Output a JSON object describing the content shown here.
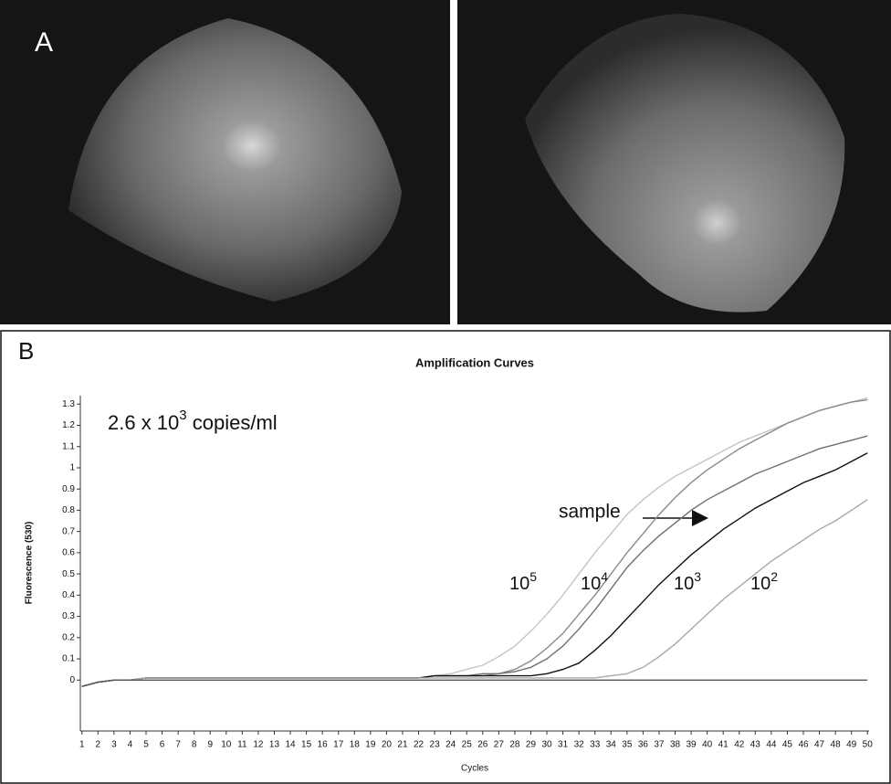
{
  "panel_a": {
    "label": "A"
  },
  "chart_data": {
    "type": "line",
    "panel_label": "B",
    "title": "Amplification Curves",
    "x_label": "Cycles",
    "y_label": "Fluorescence (530)",
    "annotation": {
      "text": "2.6 x 10",
      "sup": "3",
      "tail": " copies/ml"
    },
    "arrow_label": "sample",
    "x": [
      1,
      2,
      3,
      4,
      5,
      6,
      7,
      8,
      9,
      10,
      11,
      12,
      13,
      14,
      15,
      16,
      17,
      18,
      19,
      20,
      21,
      22,
      23,
      24,
      25,
      26,
      27,
      28,
      29,
      30,
      31,
      32,
      33,
      34,
      35,
      36,
      37,
      38,
      39,
      40,
      41,
      42,
      43,
      44,
      45,
      46,
      47,
      48,
      49,
      50
    ],
    "xlim": [
      0.9,
      50.1
    ],
    "xticks": [
      1,
      2,
      3,
      4,
      5,
      6,
      7,
      8,
      9,
      10,
      11,
      12,
      13,
      14,
      15,
      16,
      17,
      18,
      19,
      20,
      21,
      22,
      23,
      24,
      25,
      26,
      27,
      28,
      29,
      30,
      31,
      32,
      33,
      34,
      35,
      36,
      37,
      38,
      39,
      40,
      41,
      42,
      43,
      44,
      45,
      46,
      47,
      48,
      49,
      50
    ],
    "ylim": [
      -0.24,
      1.34
    ],
    "yticks": [
      0,
      0.1,
      0.2,
      0.3,
      0.4,
      0.5,
      0.6,
      0.7,
      0.8,
      0.9,
      1,
      1.1,
      1.2,
      1.3
    ],
    "series": [
      {
        "label": "10",
        "label_exp": "5",
        "color": "#c4c4c4",
        "values": [
          -0.03,
          -0.01,
          0,
          0,
          0.01,
          0.01,
          0.01,
          0.01,
          0.01,
          0.01,
          0.01,
          0.01,
          0.01,
          0.01,
          0.01,
          0.01,
          0.01,
          0.01,
          0.01,
          0.01,
          0.01,
          0.01,
          0.02,
          0.03,
          0.05,
          0.07,
          0.11,
          0.16,
          0.23,
          0.31,
          0.4,
          0.5,
          0.6,
          0.69,
          0.78,
          0.85,
          0.91,
          0.96,
          1.0,
          1.04,
          1.08,
          1.12,
          1.15,
          1.18,
          1.21,
          1.24,
          1.27,
          1.29,
          1.31,
          1.33
        ]
      },
      {
        "label": "10",
        "label_exp": "4",
        "color": "#8a8a8a",
        "values": [
          -0.03,
          -0.01,
          0,
          0,
          0.01,
          0.01,
          0.01,
          0.01,
          0.01,
          0.01,
          0.01,
          0.01,
          0.01,
          0.01,
          0.01,
          0.01,
          0.01,
          0.01,
          0.01,
          0.01,
          0.01,
          0.01,
          0.02,
          0.02,
          0.02,
          0.02,
          0.03,
          0.05,
          0.09,
          0.15,
          0.22,
          0.31,
          0.4,
          0.5,
          0.6,
          0.69,
          0.78,
          0.86,
          0.93,
          0.99,
          1.04,
          1.09,
          1.13,
          1.17,
          1.21,
          1.24,
          1.27,
          1.29,
          1.31,
          1.32
        ]
      },
      {
        "color": "#707070",
        "values": [
          -0.03,
          -0.01,
          0,
          0,
          0.01,
          0.01,
          0.01,
          0.01,
          0.01,
          0.01,
          0.01,
          0.01,
          0.01,
          0.01,
          0.01,
          0.01,
          0.01,
          0.01,
          0.01,
          0.01,
          0.01,
          0.01,
          0.02,
          0.02,
          0.02,
          0.03,
          0.03,
          0.04,
          0.06,
          0.1,
          0.16,
          0.24,
          0.33,
          0.43,
          0.53,
          0.61,
          0.68,
          0.74,
          0.8,
          0.85,
          0.89,
          0.93,
          0.97,
          1.0,
          1.03,
          1.06,
          1.09,
          1.11,
          1.13,
          1.15
        ]
      },
      {
        "label": "10",
        "label_exp": "3",
        "color": "#111111",
        "values": [
          -0.03,
          -0.01,
          0,
          0,
          0.01,
          0.01,
          0.01,
          0.01,
          0.01,
          0.01,
          0.01,
          0.01,
          0.01,
          0.01,
          0.01,
          0.01,
          0.01,
          0.01,
          0.01,
          0.01,
          0.01,
          0.01,
          0.02,
          0.02,
          0.02,
          0.02,
          0.02,
          0.02,
          0.02,
          0.03,
          0.05,
          0.08,
          0.14,
          0.21,
          0.29,
          0.37,
          0.45,
          0.52,
          0.59,
          0.65,
          0.71,
          0.76,
          0.81,
          0.85,
          0.89,
          0.93,
          0.96,
          0.99,
          1.03,
          1.07
        ]
      },
      {
        "label": "10",
        "label_exp": "2",
        "color": "#a8a8a8",
        "values": [
          -0.03,
          -0.01,
          0,
          0,
          0.01,
          0.01,
          0.01,
          0.01,
          0.01,
          0.01,
          0.01,
          0.01,
          0.01,
          0.01,
          0.01,
          0.01,
          0.01,
          0.01,
          0.01,
          0.01,
          0.01,
          0.01,
          0.01,
          0.01,
          0.01,
          0.01,
          0.01,
          0.01,
          0.01,
          0.01,
          0.01,
          0.01,
          0.01,
          0.02,
          0.03,
          0.06,
          0.11,
          0.17,
          0.24,
          0.31,
          0.38,
          0.44,
          0.5,
          0.56,
          0.61,
          0.66,
          0.71,
          0.75,
          0.8,
          0.85
        ]
      },
      {
        "color": "#555555",
        "values": [
          -0.03,
          -0.01,
          0,
          0,
          0,
          0,
          0,
          0,
          0,
          0,
          0,
          0,
          0,
          0,
          0,
          0,
          0,
          0,
          0,
          0,
          0,
          0,
          0,
          0,
          0,
          0,
          0,
          0,
          0,
          0,
          0,
          0,
          0,
          0,
          0,
          0,
          0,
          0,
          0,
          0,
          0,
          0,
          0,
          0,
          0,
          0,
          0,
          0,
          0,
          0
        ]
      }
    ]
  }
}
